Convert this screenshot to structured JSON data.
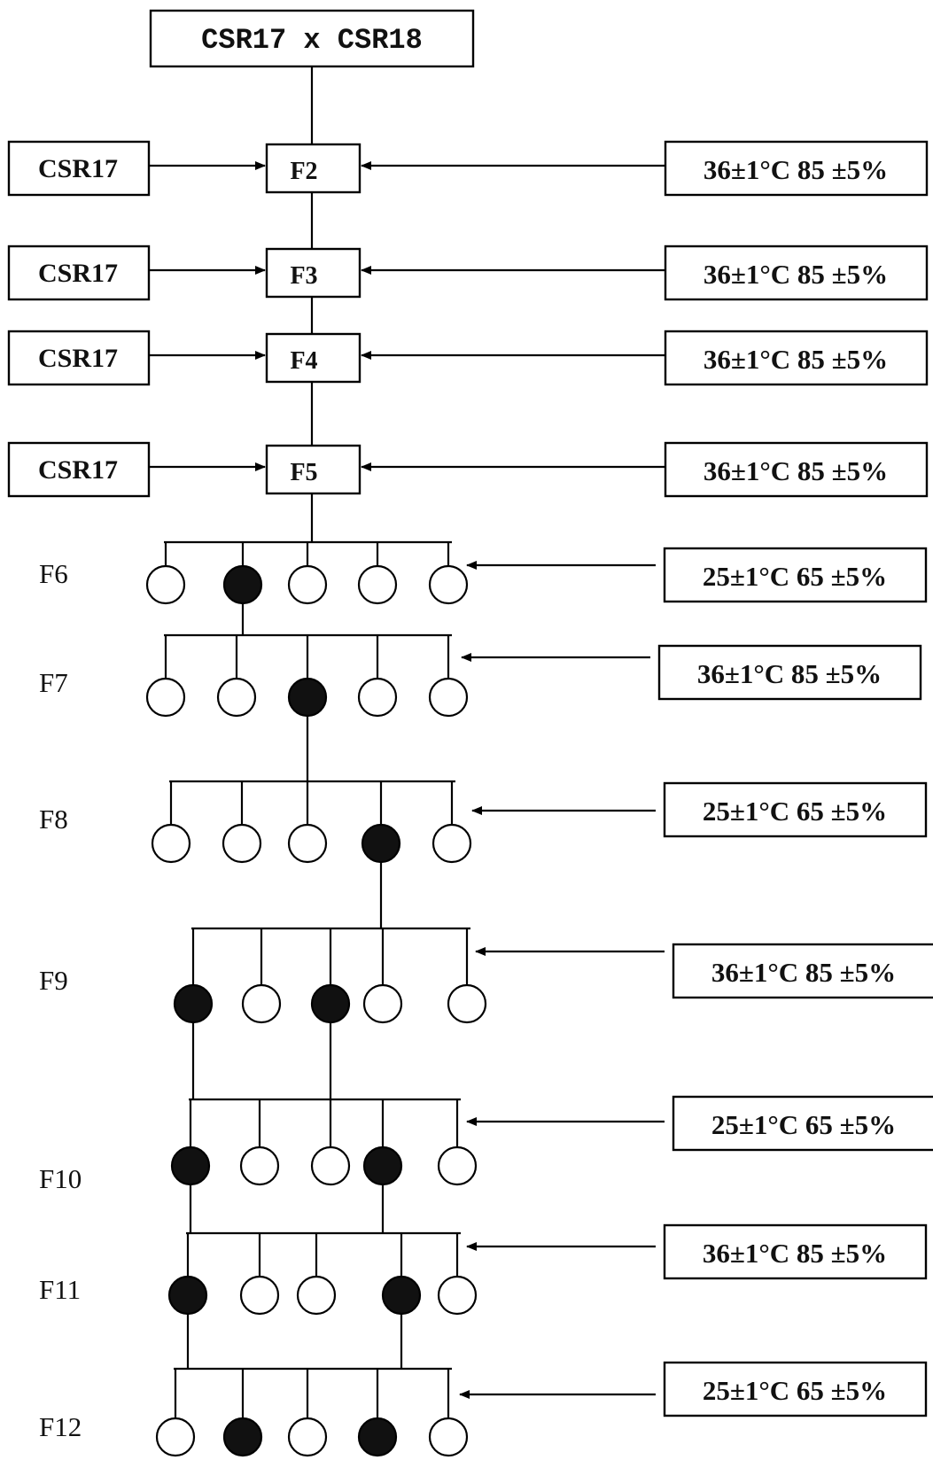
{
  "cross": {
    "label": "CSR17  x  CSR18"
  },
  "backcross_parent": "CSR17",
  "early_generations": [
    {
      "gen": "F2",
      "condition": "36±1°C  85 ±5%"
    },
    {
      "gen": "F3",
      "condition": "36±1°C  85 ±5%"
    },
    {
      "gen": "F4",
      "condition": "36±1°C  85 ±5%"
    },
    {
      "gen": "F5",
      "condition": "36±1°C  85 ±5%"
    }
  ],
  "selection_generations": [
    {
      "gen": "F6",
      "condition": "25±1°C  65 ±5%",
      "selected": [
        false,
        true,
        false,
        false,
        false
      ]
    },
    {
      "gen": "F7",
      "condition": "36±1°C  85 ±5%",
      "selected": [
        false,
        false,
        true,
        false,
        false
      ]
    },
    {
      "gen": "F8",
      "condition": "25±1°C  65 ±5%",
      "selected": [
        false,
        false,
        false,
        true,
        false
      ]
    },
    {
      "gen": "F9",
      "condition": "36±1°C  85 ±5%",
      "selected": [
        true,
        false,
        true,
        false,
        false
      ]
    },
    {
      "gen": "F10",
      "condition": "25±1°C  65 ±5%",
      "selected": [
        true,
        false,
        false,
        true,
        false
      ]
    },
    {
      "gen": "F11",
      "condition": "36±1°C  85 ±5%",
      "selected": [
        true,
        false,
        false,
        true,
        false
      ]
    },
    {
      "gen": "F12",
      "condition": "25±1°C  65 ±5%",
      "selected": [
        false,
        true,
        false,
        true,
        false
      ]
    }
  ]
}
